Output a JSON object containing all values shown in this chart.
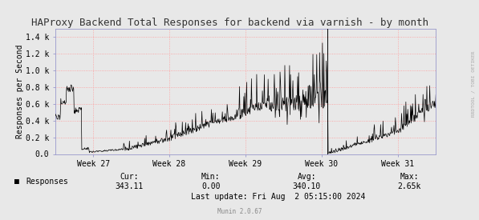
{
  "title": "HAProxy Backend Total Responses for backend via varnish - by month",
  "ylabel": "Responses per Second",
  "y_ticks": [
    0.0,
    0.2,
    0.4,
    0.6,
    0.8,
    1.0,
    1.2,
    1.4
  ],
  "y_tick_labels": [
    "0.0",
    "0.2 k",
    "0.4 k",
    "0.6 k",
    "0.8 k",
    "1.0 k",
    "1.2 k",
    "1.4 k"
  ],
  "ylim": [
    0,
    1.5
  ],
  "x_tick_positions": [
    0.1,
    0.3,
    0.5,
    0.7,
    0.9
  ],
  "x_tick_labels": [
    "Week 27",
    "Week 28",
    "Week 29",
    "Week 30",
    "Week 31"
  ],
  "bg_color": "#e8e8e8",
  "plot_bg_color": "#e8e8e8",
  "grid_color": "#ff9999",
  "grid_alpha": 0.9,
  "line_color": "#000000",
  "axis_color": "#9999cc",
  "title_color": "#333333",
  "title_fontsize": 9,
  "label_fontsize": 7,
  "tick_fontsize": 7,
  "legend_text": "Responses",
  "cur": "343.11",
  "min": "0.00",
  "avg": "340.10",
  "max": "2.65k",
  "last_update": "Last update: Fri Aug  2 05:15:00 2024",
  "munin_version": "Munin 2.0.67",
  "right_label": "RRDTOOL / TOBI OETIKER",
  "vertical_line_x": 0.716
}
